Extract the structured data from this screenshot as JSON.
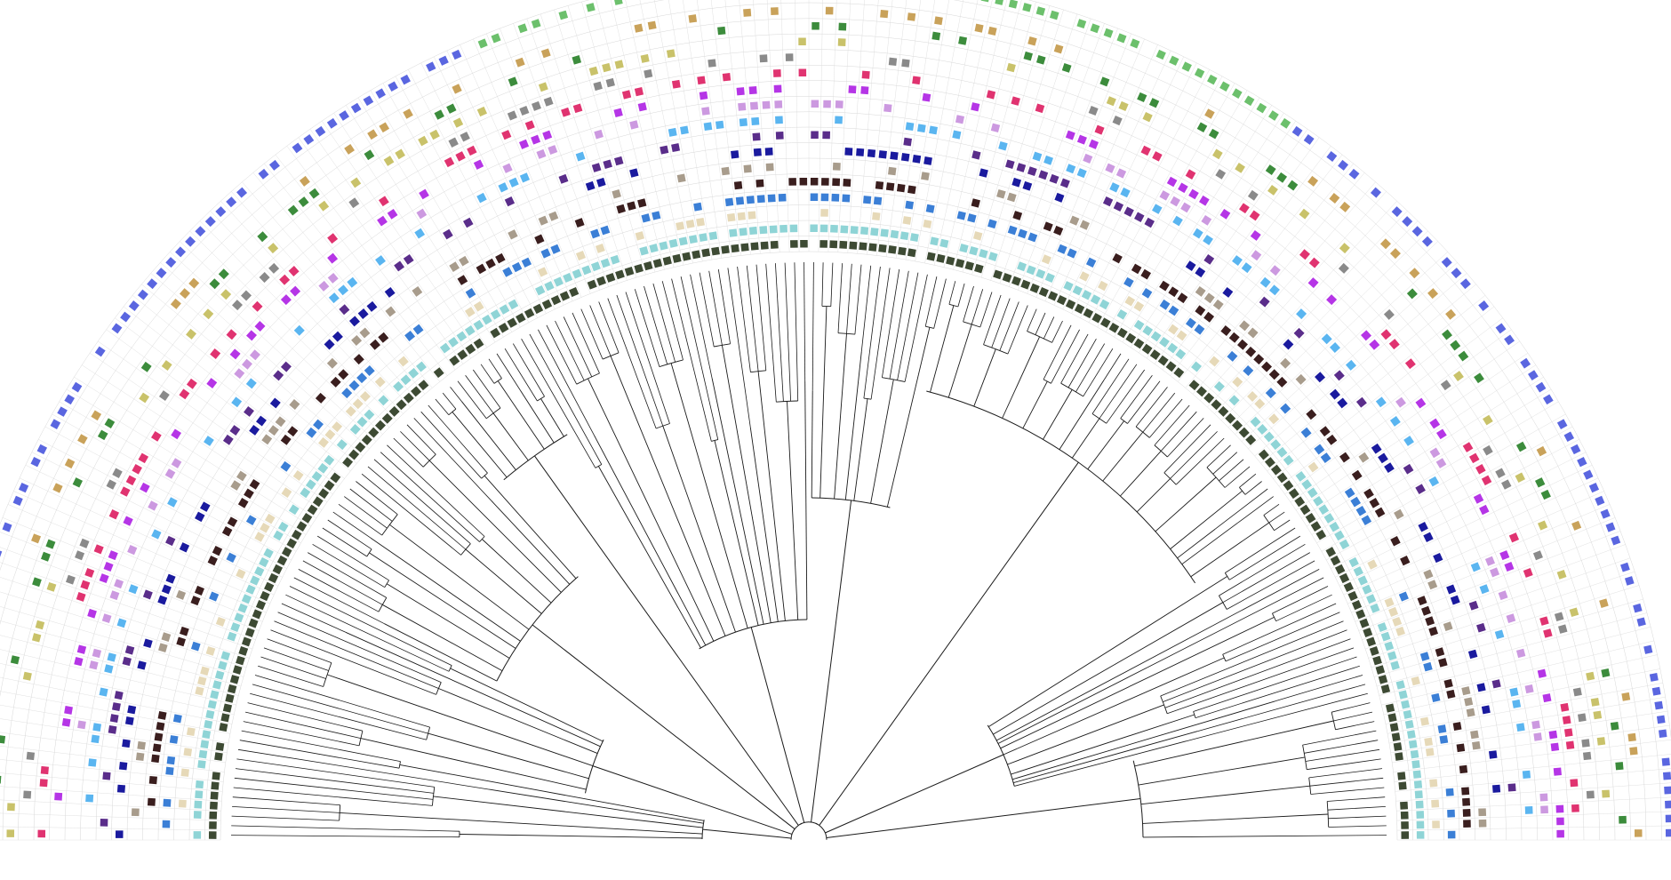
{
  "figure": {
    "type": "circular-phylogenetic-tree-with-heatmap-rings",
    "layout": "semicircle",
    "background": "#ffffff"
  },
  "tree": {
    "leaf_count": 190,
    "branch_color": "#1a1a1a",
    "clades": [
      {
        "from": 0,
        "to": 12
      },
      {
        "from": 12,
        "to": 28
      },
      {
        "from": 28,
        "to": 52
      },
      {
        "from": 52,
        "to": 63
      },
      {
        "from": 63,
        "to": 95
      },
      {
        "from": 95,
        "to": 110
      },
      {
        "from": 110,
        "to": 155
      },
      {
        "from": 155,
        "to": 175
      },
      {
        "from": 175,
        "to": 190
      }
    ]
  },
  "heatmap": {
    "ring_count": 16,
    "grid_color": "#d8d8d8",
    "ring_colors": [
      "#3d4a33",
      "#8fd4d6",
      "#e6d9b8",
      "#3b7fd6",
      "#3a1e1e",
      "#a89c8c",
      "#1a1a9e",
      "#5a2d8a",
      "#5ab5f0",
      "#cc99e0",
      "#b535e6",
      "#e03370",
      "#8a8a8a",
      "#c9c26a",
      "#3c8c3c",
      "#c9a25a"
    ],
    "outer_ring_colors": [
      "#5a66e0",
      "#6cc06c"
    ]
  }
}
